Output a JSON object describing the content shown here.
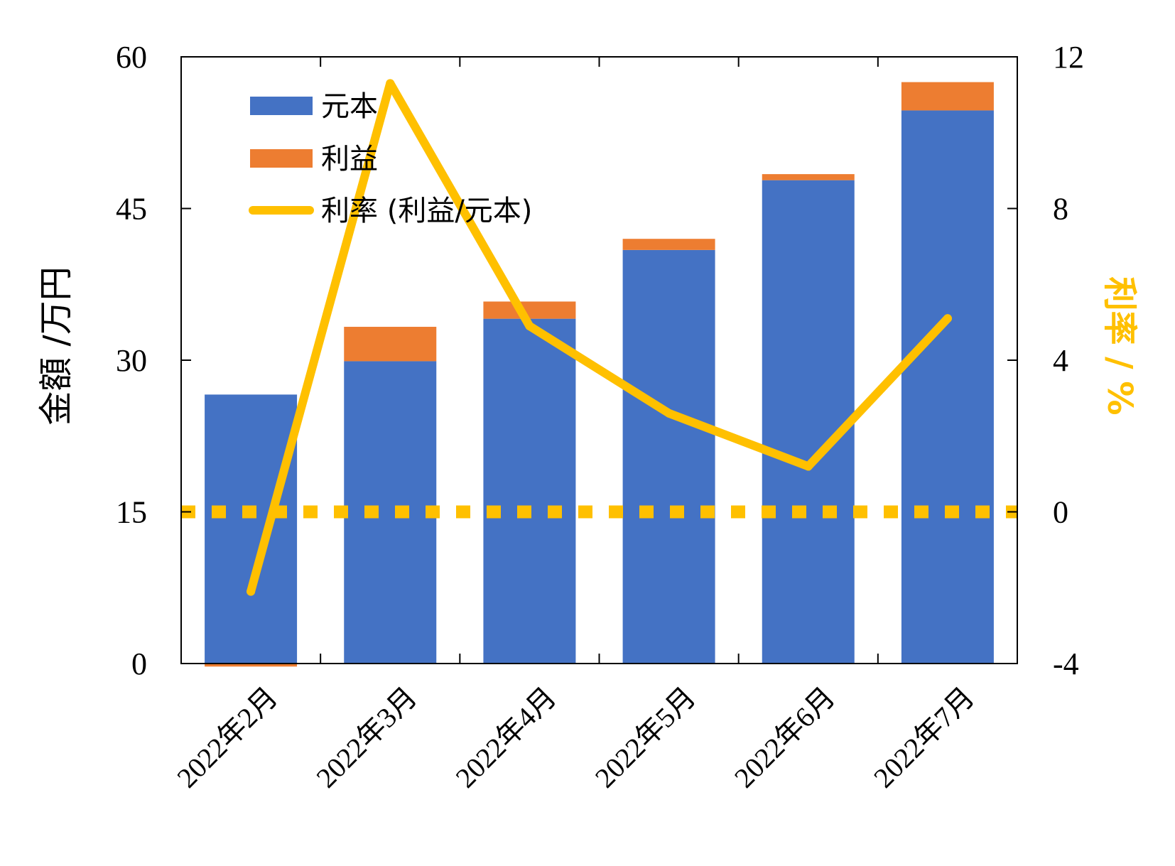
{
  "chart_data": {
    "type": "bar",
    "stacked": true,
    "categories": [
      "2022年2月",
      "2022年3月",
      "2022年4月",
      "2022年5月",
      "2022年6月",
      "2022年7月"
    ],
    "series": [
      {
        "name": "元本",
        "type": "bar",
        "axis": "left",
        "color": "#4472C4",
        "values": [
          26.6,
          29.9,
          34.1,
          40.9,
          47.8,
          54.7
        ]
      },
      {
        "name": "利益",
        "type": "bar",
        "axis": "left",
        "color": "#ED7D31",
        "values": [
          -0.3,
          3.4,
          1.7,
          1.1,
          0.6,
          2.8
        ]
      },
      {
        "name": "利率 (利益/元本)",
        "type": "line",
        "axis": "right",
        "color": "#FFC000",
        "values": [
          -2.1,
          11.3,
          4.9,
          2.6,
          1.2,
          5.1
        ]
      }
    ],
    "reference_line": {
      "axis": "right",
      "value": 0,
      "style": "dotted",
      "color": "#FFC000"
    },
    "ylabel": "金額 /万円",
    "y2label": "利率 / %",
    "ylim": [
      0,
      60
    ],
    "yticks": [
      "0",
      "15",
      "30",
      "45",
      "60"
    ],
    "y2lim": [
      -4,
      12
    ],
    "y2ticks": [
      "-4",
      "0",
      "4",
      "8",
      "12"
    ],
    "legend_position": "top-left",
    "grid": false
  }
}
